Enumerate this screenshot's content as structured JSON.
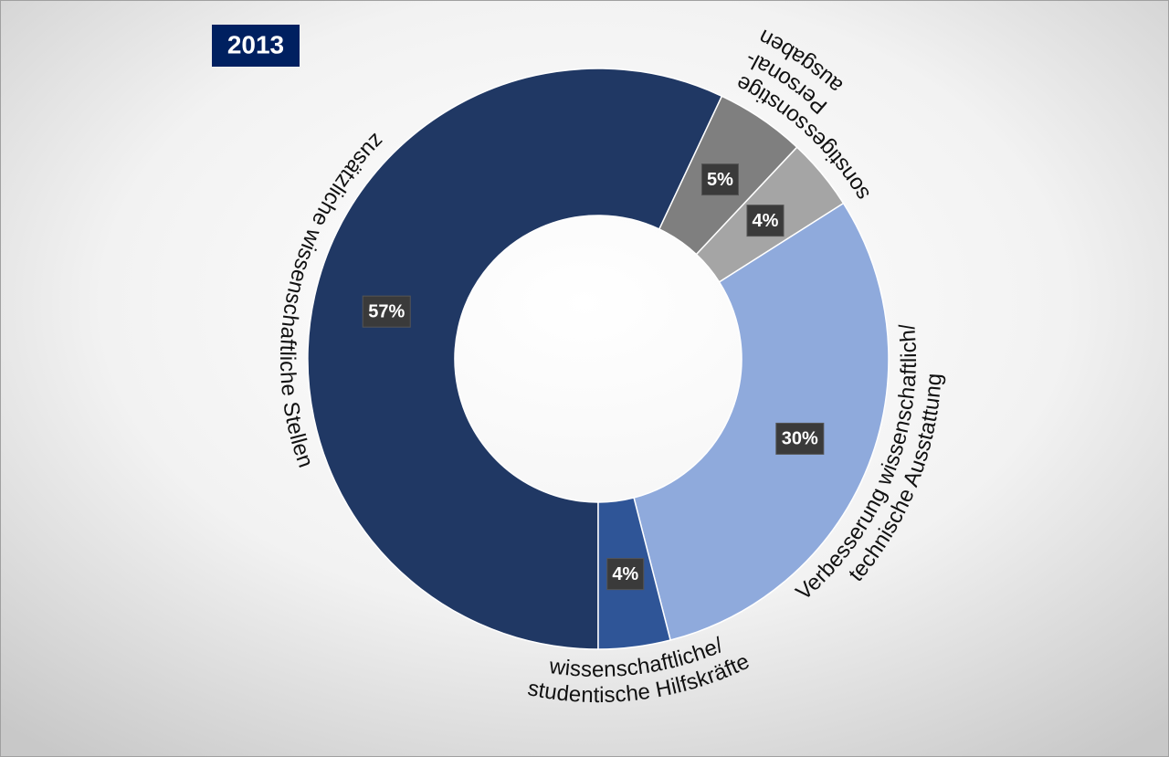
{
  "chart_data": {
    "type": "donut",
    "title": "2013",
    "categories": [
      [
        "zusätzliche wissenschaftliche Stellen"
      ],
      [
        "sonstige",
        "Personal-",
        "ausgaben"
      ],
      [
        "sonstiges"
      ],
      [
        "Verbesserung wissenschaftlich/",
        "technische Ausstattung"
      ],
      [
        "wissenschaftliche/",
        "studentische Hilfskräfte"
      ]
    ],
    "values": [
      57,
      5,
      4,
      30,
      4
    ],
    "value_labels": [
      "57%",
      "5%",
      "4%",
      "30%",
      "4%"
    ],
    "colors": [
      "#203864",
      "#7f7f7f",
      "#a5a5a5",
      "#8faadc",
      "#2f5597"
    ]
  }
}
